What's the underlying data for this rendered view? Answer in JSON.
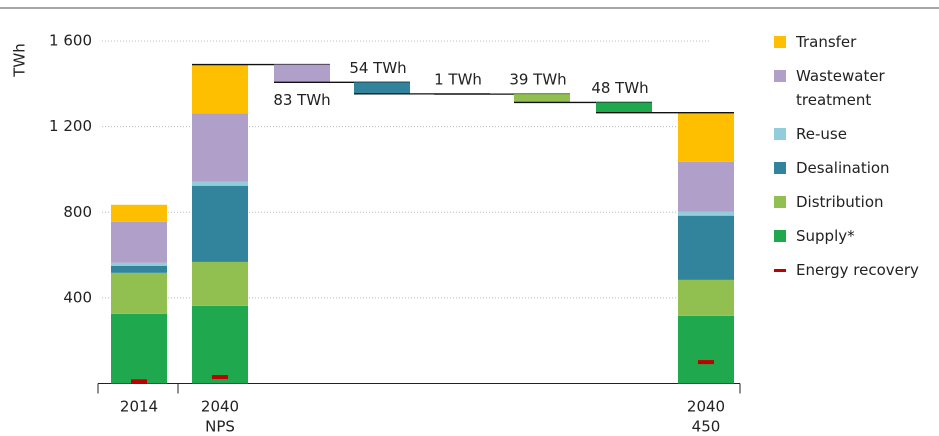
{
  "chart_data": {
    "type": "bar",
    "stacked": true,
    "y_label": "TWh",
    "categories": [
      [
        "2014"
      ],
      [
        "2040",
        "NPS"
      ],
      [
        "2040",
        "450"
      ]
    ],
    "series": [
      {
        "name": "Supply*",
        "color": "#1fa84e",
        "values": [
          325,
          363,
          316
        ]
      },
      {
        "name": "Distribution",
        "color": "#92c050",
        "values": [
          192,
          205,
          168
        ]
      },
      {
        "name": "Desalination",
        "color": "#31849b",
        "values": [
          33,
          356,
          300
        ]
      },
      {
        "name": "Re-use",
        "color": "#92cddc",
        "values": [
          14,
          19,
          19
        ]
      },
      {
        "name": "Wastewater treatment",
        "color": "#b09fc8",
        "values": [
          191,
          318,
          233
        ]
      },
      {
        "name": "Transfer",
        "color": "#fdbf00",
        "values": [
          80,
          229,
          229
        ]
      }
    ],
    "markers": {
      "name": "Energy recovery",
      "color": "#c00000",
      "values": [
        10,
        30,
        100
      ]
    },
    "waterfall": {
      "colors": [
        "#b09fc8",
        "#31849b",
        "#92cddc",
        "#92c050",
        "#1fa84e"
      ],
      "values": [
        83,
        54,
        1,
        39,
        48
      ],
      "value_labels": [
        "83 TWh",
        "54 TWh",
        "1 TWh",
        "39 TWh",
        "48 TWh"
      ]
    },
    "ylim": [
      0,
      1600
    ],
    "yticks": [
      {
        "value": 400,
        "label": "400"
      },
      {
        "value": 800,
        "label": "800"
      },
      {
        "value": 1200,
        "label": "1 200"
      },
      {
        "value": 1600,
        "label": "1 600"
      }
    ],
    "grid": true
  }
}
